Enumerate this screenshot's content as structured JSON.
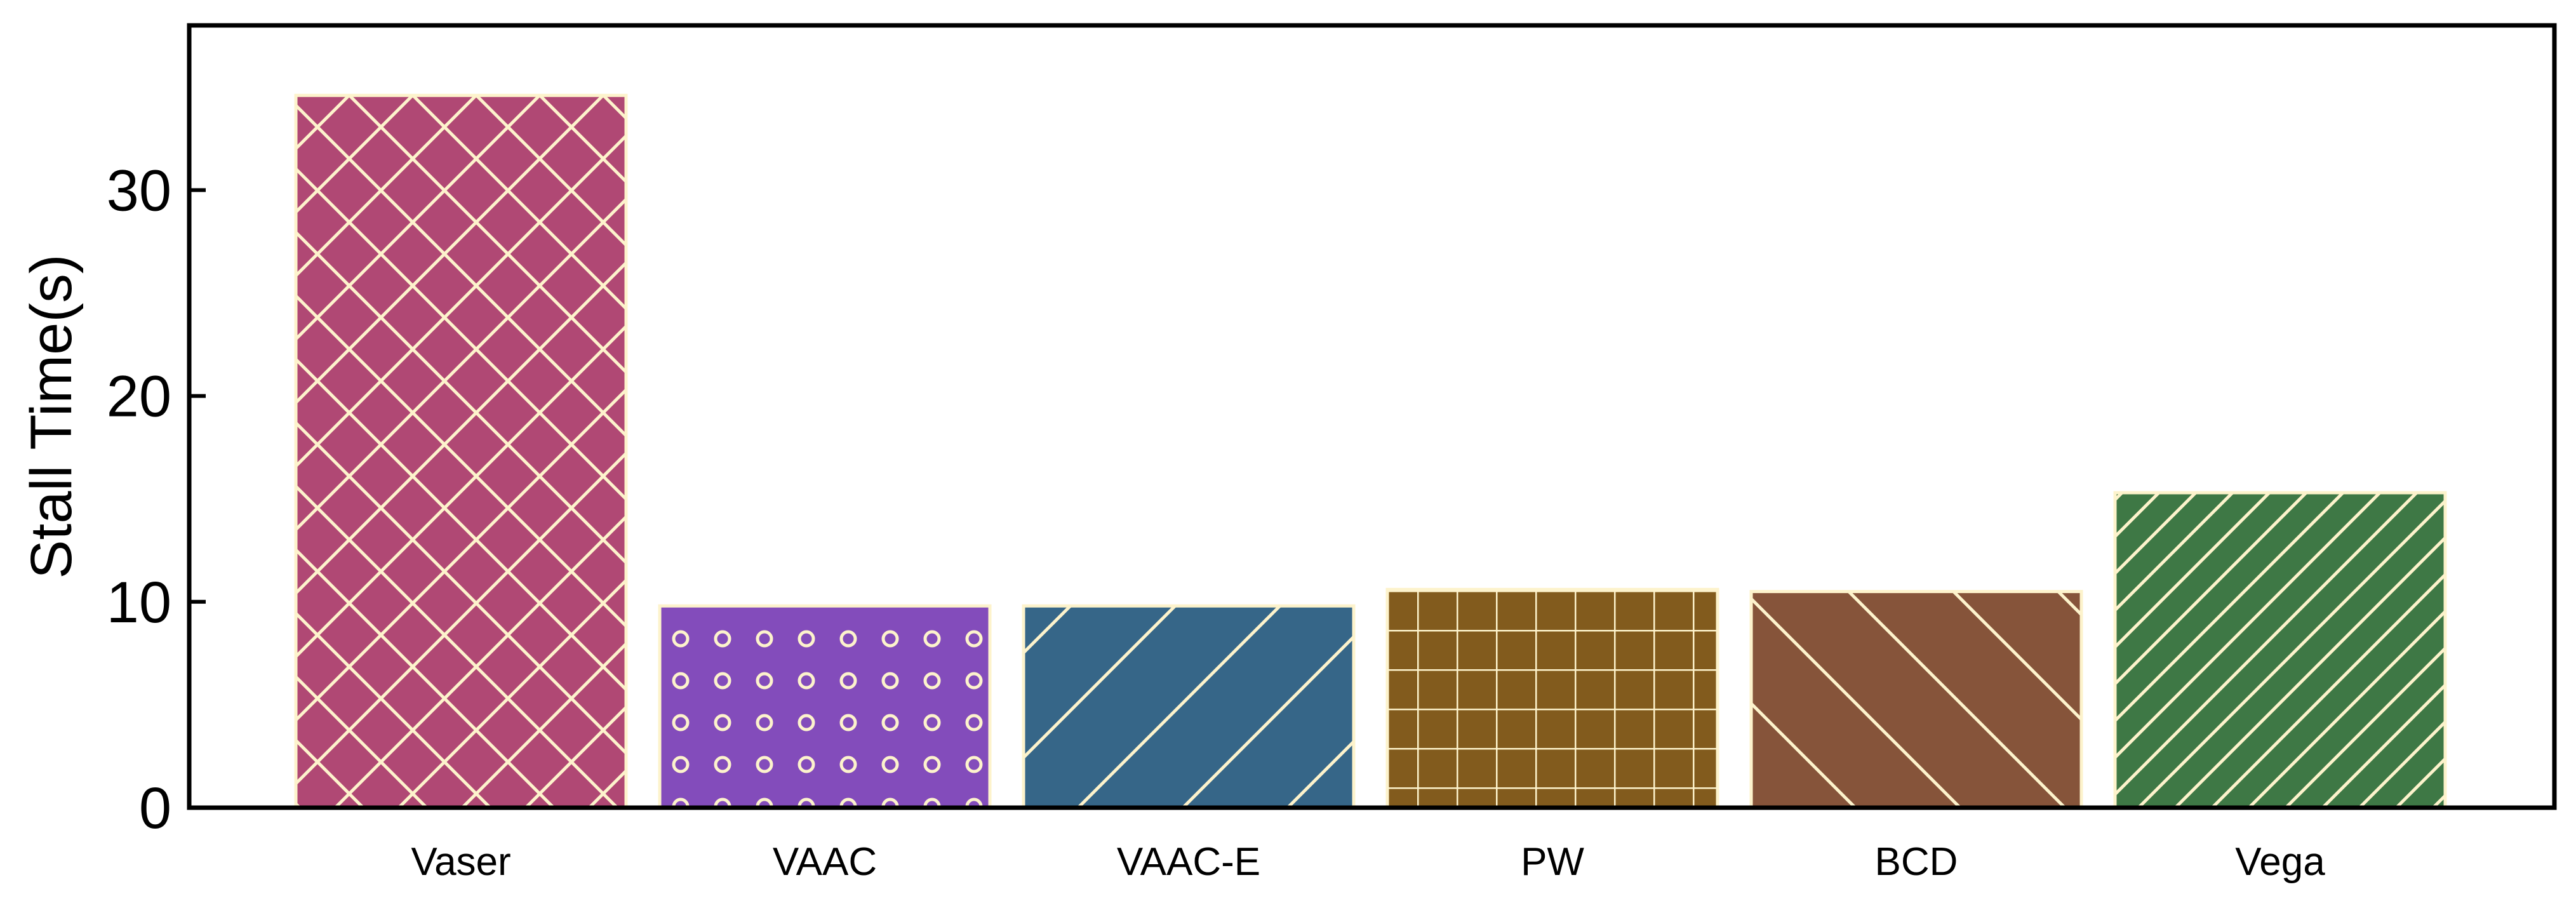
{
  "chart_data": {
    "type": "bar",
    "title": "",
    "xlabel": "",
    "ylabel": "Stall Time(s)",
    "ylim": [
      0,
      38
    ],
    "yticks": [
      0,
      10,
      20,
      30
    ],
    "grid": false,
    "categories": [
      "Vaser",
      "VAAC",
      "VAAC-E",
      "PW",
      "BCD",
      "Vega"
    ],
    "values": [
      34.6,
      9.8,
      9.8,
      10.6,
      10.5,
      15.3
    ],
    "colors": [
      "#b04874",
      "#834cbb",
      "#366688",
      "#825b1d",
      "#86543a",
      "#3e7845"
    ],
    "hatches": [
      "crosshatch-diagonal",
      "rings",
      "slash-wide",
      "grid",
      "backslash-wide",
      "slash-dense"
    ],
    "hatch_color": "#fdf3cc"
  }
}
